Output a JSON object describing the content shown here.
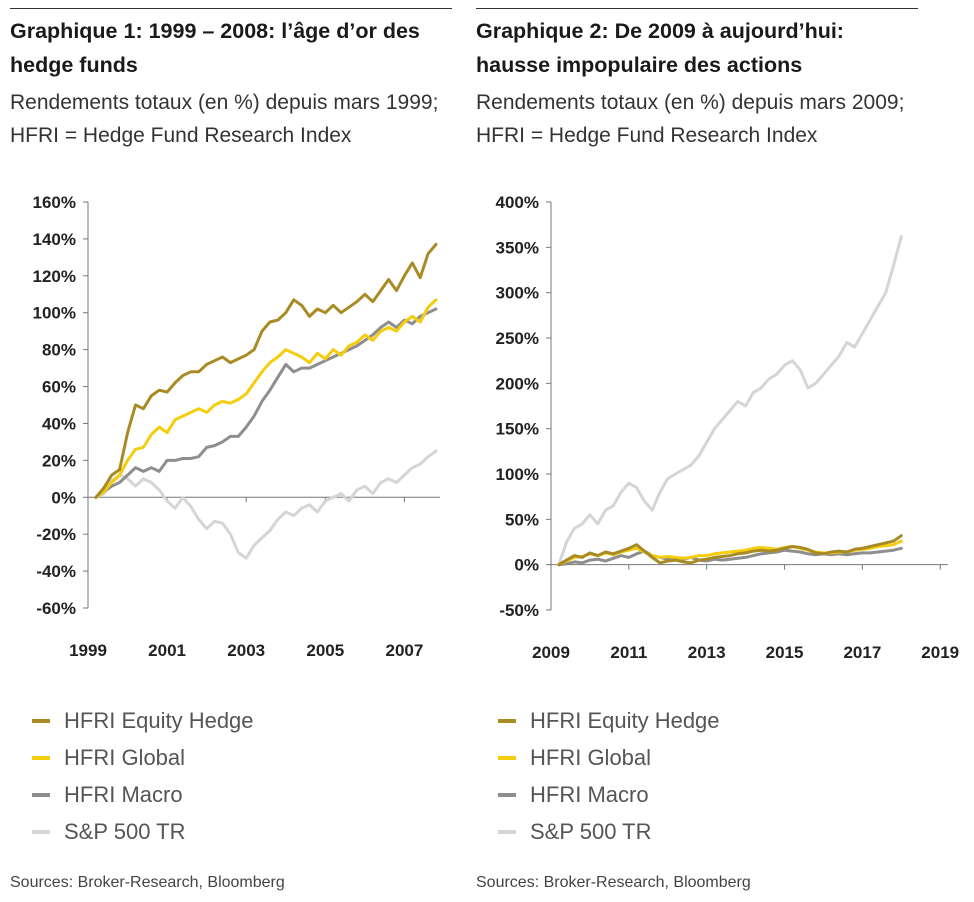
{
  "colors": {
    "equity_hedge": "#a98b25",
    "global": "#f5cd0c",
    "macro": "#8e8e8e",
    "sp500": "#d5d5d5"
  },
  "charts": [
    {
      "title": "Graphique 1: 1999 – 2008: l’âge d’or des hedge funds",
      "subtitle": "Rendements totaux (en %) depuis mars 1999; HFRI = Hedge Fund Research Index",
      "legend": [
        "HFRI Equity Hedge",
        "HFRI Global",
        "HFRI Macro",
        "S&P 500 TR"
      ],
      "source": "Sources: Broker-Research, Bloomberg"
    },
    {
      "title": "Graphique 2: De 2009 à aujourd’hui: hausse impopulaire des actions",
      "subtitle": "Rendements totaux (en %) depuis mars 2009; HFRI = Hedge Fund Research Index",
      "legend": [
        "HFRI Equity Hedge",
        "HFRI Global",
        "HFRI Macro",
        "S&P 500 TR"
      ],
      "source": "Sources: Broker-Research, Bloomberg"
    }
  ],
  "chart_data": [
    {
      "type": "line",
      "title": "Graphique 1: 1999 – 2008: l’âge d’or des hedge funds",
      "xlim": [
        1999,
        2007.9
      ],
      "xticks": [
        1999,
        2001,
        2003,
        2005,
        2007
      ],
      "xtick_labels": [
        "1999",
        "2001",
        "2003",
        "2005",
        "2007"
      ],
      "ylim": [
        -60,
        160
      ],
      "yticks": [
        -60,
        -40,
        -20,
        0,
        20,
        40,
        60,
        80,
        100,
        120,
        140,
        160
      ],
      "ytick_labels": [
        "-60%",
        "-40%",
        "-20%",
        "0%",
        "20%",
        "40%",
        "60%",
        "80%",
        "100%",
        "120%",
        "140%",
        "160%"
      ],
      "x": [
        1999.2,
        1999.4,
        1999.6,
        1999.8,
        2000.0,
        2000.2,
        2000.4,
        2000.6,
        2000.8,
        2001.0,
        2001.2,
        2001.4,
        2001.6,
        2001.8,
        2002.0,
        2002.2,
        2002.4,
        2002.6,
        2002.8,
        2003.0,
        2003.2,
        2003.4,
        2003.6,
        2003.8,
        2004.0,
        2004.2,
        2004.4,
        2004.6,
        2004.8,
        2005.0,
        2005.2,
        2005.4,
        2005.6,
        2005.8,
        2006.0,
        2006.2,
        2006.4,
        2006.6,
        2006.8,
        2007.0,
        2007.2,
        2007.4,
        2007.6,
        2007.8
      ],
      "series": [
        {
          "name": "HFRI Equity Hedge",
          "color": "#a98b25",
          "values": [
            0,
            5,
            12,
            15,
            35,
            50,
            48,
            55,
            58,
            57,
            62,
            66,
            68,
            68,
            72,
            74,
            76,
            73,
            75,
            77,
            80,
            90,
            95,
            96,
            100,
            107,
            104,
            98,
            102,
            100,
            104,
            100,
            103,
            106,
            110,
            106,
            112,
            118,
            112,
            120,
            127,
            119,
            132,
            137
          ]
        },
        {
          "name": "HFRI Global",
          "color": "#f5cd0c",
          "values": [
            0,
            3,
            8,
            12,
            20,
            26,
            27,
            34,
            38,
            35,
            42,
            44,
            46,
            48,
            46,
            50,
            52,
            51,
            53,
            56,
            62,
            68,
            73,
            76,
            80,
            78,
            76,
            73,
            78,
            75,
            80,
            77,
            82,
            84,
            88,
            85,
            90,
            92,
            90,
            95,
            98,
            95,
            103,
            107
          ]
        },
        {
          "name": "HFRI Macro",
          "color": "#8e8e8e",
          "values": [
            0,
            3,
            6,
            8,
            12,
            16,
            14,
            16,
            14,
            20,
            20,
            21,
            21,
            22,
            27,
            28,
            30,
            33,
            33,
            38,
            44,
            52,
            58,
            65,
            72,
            68,
            70,
            70,
            72,
            74,
            76,
            78,
            80,
            82,
            85,
            88,
            92,
            95,
            92,
            96,
            94,
            98,
            100,
            102
          ]
        },
        {
          "name": "S&P 500 TR",
          "color": "#d5d5d5",
          "values": [
            0,
            2,
            9,
            12,
            10,
            6,
            10,
            8,
            4,
            -2,
            -6,
            0,
            -5,
            -12,
            -17,
            -13,
            -14,
            -20,
            -30,
            -33,
            -26,
            -22,
            -18,
            -12,
            -8,
            -10,
            -6,
            -4,
            -8,
            -2,
            0,
            2,
            -2,
            4,
            6,
            2,
            8,
            10,
            8,
            12,
            16,
            18,
            22,
            25
          ]
        }
      ]
    },
    {
      "type": "line",
      "title": "Graphique 2: De 2009 à aujourd’hui: hausse impopulaire des actions",
      "xlim": [
        2009,
        2019.2
      ],
      "xticks": [
        2009,
        2011,
        2013,
        2015,
        2017,
        2019
      ],
      "xtick_labels": [
        "2009",
        "2011",
        "2013",
        "2015",
        "2017",
        "2019"
      ],
      "ylim": [
        -50,
        400
      ],
      "yticks": [
        -50,
        0,
        50,
        100,
        150,
        200,
        250,
        300,
        350,
        400
      ],
      "ytick_labels": [
        "-50%",
        "0%",
        "50%",
        "100%",
        "150%",
        "200%",
        "250%",
        "300%",
        "350%",
        "400%"
      ],
      "x": [
        2009.2,
        2009.4,
        2009.6,
        2009.8,
        2010.0,
        2010.2,
        2010.4,
        2010.6,
        2010.8,
        2011.0,
        2011.2,
        2011.4,
        2011.6,
        2011.8,
        2012.0,
        2012.2,
        2012.4,
        2012.6,
        2012.8,
        2013.0,
        2013.2,
        2013.4,
        2013.6,
        2013.8,
        2014.0,
        2014.2,
        2014.4,
        2014.6,
        2014.8,
        2015.0,
        2015.2,
        2015.4,
        2015.6,
        2015.8,
        2016.0,
        2016.2,
        2016.4,
        2016.6,
        2016.8,
        2017.0,
        2017.2,
        2017.4,
        2017.6,
        2017.8,
        2018.0
      ],
      "series": [
        {
          "name": "HFRI Equity Hedge",
          "color": "#a98b25",
          "values": [
            0,
            5,
            10,
            8,
            13,
            10,
            14,
            12,
            15,
            18,
            22,
            15,
            8,
            2,
            4,
            5,
            3,
            2,
            5,
            6,
            8,
            9,
            10,
            12,
            13,
            15,
            16,
            15,
            16,
            18,
            20,
            19,
            17,
            13,
            12,
            14,
            15,
            14,
            17,
            18,
            20,
            22,
            24,
            26,
            32
          ]
        },
        {
          "name": "HFRI Global",
          "color": "#f5cd0c",
          "values": [
            0,
            4,
            8,
            9,
            12,
            10,
            13,
            11,
            14,
            16,
            18,
            14,
            10,
            8,
            9,
            8,
            7,
            8,
            10,
            10,
            12,
            13,
            14,
            15,
            16,
            18,
            19,
            18,
            17,
            19,
            20,
            18,
            16,
            14,
            13,
            13,
            14,
            14,
            16,
            17,
            18,
            20,
            21,
            22,
            26
          ]
        },
        {
          "name": "HFRI Macro",
          "color": "#8e8e8e",
          "values": [
            0,
            1,
            3,
            2,
            5,
            6,
            4,
            7,
            10,
            8,
            12,
            15,
            10,
            8,
            6,
            7,
            6,
            8,
            5,
            4,
            6,
            5,
            6,
            7,
            8,
            10,
            12,
            13,
            14,
            16,
            15,
            14,
            12,
            11,
            12,
            11,
            12,
            11,
            12,
            13,
            13,
            14,
            15,
            16,
            18
          ]
        },
        {
          "name": "S&P 500 TR",
          "color": "#d5d5d5",
          "values": [
            0,
            25,
            40,
            45,
            55,
            45,
            60,
            65,
            80,
            90,
            85,
            70,
            60,
            80,
            95,
            100,
            105,
            110,
            120,
            135,
            150,
            160,
            170,
            180,
            175,
            190,
            195,
            205,
            210,
            220,
            225,
            215,
            195,
            200,
            210,
            220,
            230,
            245,
            240,
            255,
            270,
            285,
            300,
            330,
            362
          ]
        }
      ]
    }
  ]
}
